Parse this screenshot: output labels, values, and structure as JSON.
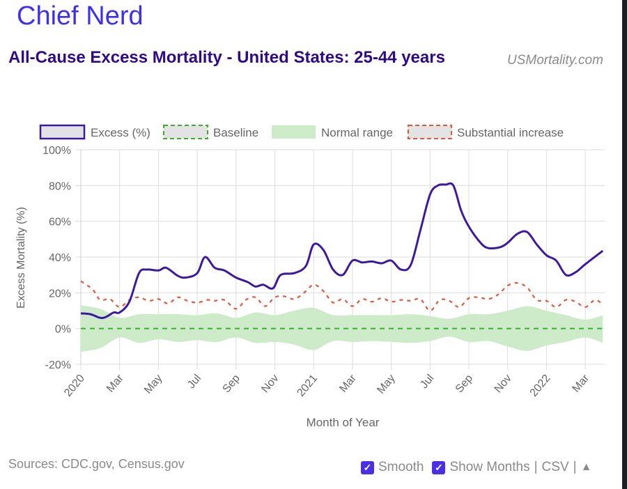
{
  "brand": "Chief Nerd",
  "site": "USMortality.com",
  "footer": {
    "sources": "Sources: CDC.gov, Census.gov",
    "smooth_label": "Smooth",
    "smooth_checked": true,
    "show_months_label": "Show Months",
    "show_months_checked": true,
    "sep1": "|",
    "csv_label": "CSV",
    "sep2": "|",
    "up_arrow": "▲"
  },
  "colors": {
    "excess": "#3b1a9e",
    "baseline": "#3cae2e",
    "normal_range": "#cdebc9",
    "substantial": "#e0573a",
    "grid": "#dddddd",
    "axis_text": "#666666"
  },
  "chart_data": {
    "type": "line",
    "title": "All-Cause Excess Mortality - United States: 25-44 years",
    "xlabel": "Month of Year",
    "ylabel": "Excess Mortality (%)",
    "ylim": [
      -20,
      100
    ],
    "yticks": [
      -20,
      0,
      20,
      40,
      60,
      80,
      100
    ],
    "ytick_labels": [
      "-20%",
      "0%",
      "20%",
      "40%",
      "60%",
      "80%",
      "100%"
    ],
    "x_unit": "months since Jan 2020",
    "xlim": [
      0,
      27
    ],
    "xticks": [
      0,
      2,
      4,
      6,
      8,
      10,
      12,
      14,
      16,
      18,
      20,
      22,
      24,
      26
    ],
    "xtick_labels": [
      "2020",
      "Mar",
      "May",
      "Jul",
      "Sep",
      "Nov",
      "2021",
      "Mar",
      "May",
      "Jul",
      "Sep",
      "Nov",
      "2022",
      "Mar"
    ],
    "grid": true,
    "legend": {
      "placement": "top",
      "entries": [
        "Excess (%)",
        "Baseline",
        "Normal range",
        "Substantial increase"
      ]
    },
    "series": [
      {
        "name": "Excess (%)",
        "x": [
          0,
          0.5,
          1,
          1.3,
          1.7,
          2,
          2.5,
          3,
          3.4,
          4,
          4.4,
          5,
          5.4,
          6,
          6.4,
          6.9,
          7.4,
          8,
          8.6,
          9,
          9.4,
          9.9,
          10.3,
          11,
          11.6,
          12,
          12.5,
          13,
          13.5,
          14,
          14.5,
          15,
          15.5,
          16,
          16.5,
          17,
          17.5,
          18,
          18.4,
          18.8,
          19.2,
          19.6,
          20,
          20.6,
          21,
          21.6,
          22,
          22.5,
          23,
          23.5,
          24,
          24.5,
          25,
          25.5,
          26,
          26.9
        ],
        "values": [
          8.5,
          8,
          6,
          6.5,
          9,
          9,
          15,
          31,
          33,
          32.5,
          34,
          29.5,
          28.5,
          31,
          40,
          34,
          32.5,
          28.5,
          26,
          23.5,
          24.5,
          22.5,
          30,
          31,
          35,
          47,
          44,
          33,
          30,
          38,
          37,
          37.5,
          36.5,
          38,
          33,
          35.5,
          55,
          75,
          80,
          80.5,
          80,
          66,
          57,
          48,
          45,
          45.5,
          48,
          53,
          54,
          47,
          41,
          38,
          30,
          31.5,
          36,
          43.5
        ]
      },
      {
        "name": "Baseline",
        "x": [
          0,
          27
        ],
        "values": [
          0,
          0
        ]
      },
      {
        "name": "Normal range (upper)",
        "x": [
          0,
          1,
          2,
          3,
          4,
          5,
          6,
          7,
          8,
          9,
          10,
          11,
          12,
          13,
          14,
          15,
          16,
          17,
          18,
          19,
          20,
          21,
          22,
          23,
          24,
          25,
          26,
          26.9
        ],
        "values": [
          13,
          11,
          6,
          8,
          8,
          8,
          7.5,
          8.5,
          6,
          9,
          7.5,
          10,
          11.5,
          7.5,
          7.5,
          7.5,
          7.5,
          8,
          7,
          5.5,
          8,
          8,
          10,
          12.5,
          10,
          7.5,
          5,
          7.5
        ]
      },
      {
        "name": "Normal range (lower)",
        "x": [
          0,
          1,
          2,
          3,
          4,
          5,
          6,
          7,
          8,
          9,
          10,
          11,
          12,
          13,
          14,
          15,
          16,
          17,
          18,
          19,
          20,
          21,
          22,
          23,
          24,
          25,
          26,
          26.9
        ],
        "values": [
          -13,
          -11,
          -5,
          -8,
          -6,
          -7.5,
          -6.5,
          -7.5,
          -5,
          -8,
          -7.5,
          -9,
          -12,
          -7,
          -7.5,
          -7,
          -7.5,
          -8,
          -7,
          -4.5,
          -7.5,
          -7,
          -10,
          -12.5,
          -9.5,
          -7.5,
          -5,
          -8
        ]
      },
      {
        "name": "Substantial increase",
        "x": [
          0,
          0.6,
          1,
          1.5,
          2,
          2.5,
          3,
          3.5,
          4,
          4.5,
          5,
          5.5,
          6,
          6.5,
          6.9,
          7.4,
          8,
          8.5,
          9,
          9.5,
          10,
          10.5,
          11,
          11.5,
          12,
          12.5,
          13,
          13.5,
          14,
          14.5,
          15,
          15.5,
          16,
          16.5,
          17,
          17.5,
          18,
          18.5,
          19,
          19.5,
          20,
          20.5,
          21,
          21.5,
          22,
          22.5,
          23,
          23.5,
          24,
          24.5,
          25,
          25.5,
          26,
          26.5,
          26.9
        ],
        "values": [
          26.5,
          22,
          16,
          16.5,
          12,
          16,
          17.5,
          15.5,
          16.5,
          14,
          17.5,
          15.5,
          14.5,
          16,
          15.5,
          16,
          11,
          16,
          17.5,
          12.5,
          17.5,
          18,
          16.5,
          20,
          24.5,
          21,
          14.5,
          16.5,
          12.5,
          16.5,
          15,
          17,
          15,
          16,
          15.5,
          16.5,
          10,
          16,
          15.5,
          12,
          17,
          17.5,
          16.5,
          19,
          24,
          25.5,
          23,
          16,
          15.5,
          12,
          16,
          15,
          12,
          16,
          13.5
        ]
      }
    ]
  }
}
